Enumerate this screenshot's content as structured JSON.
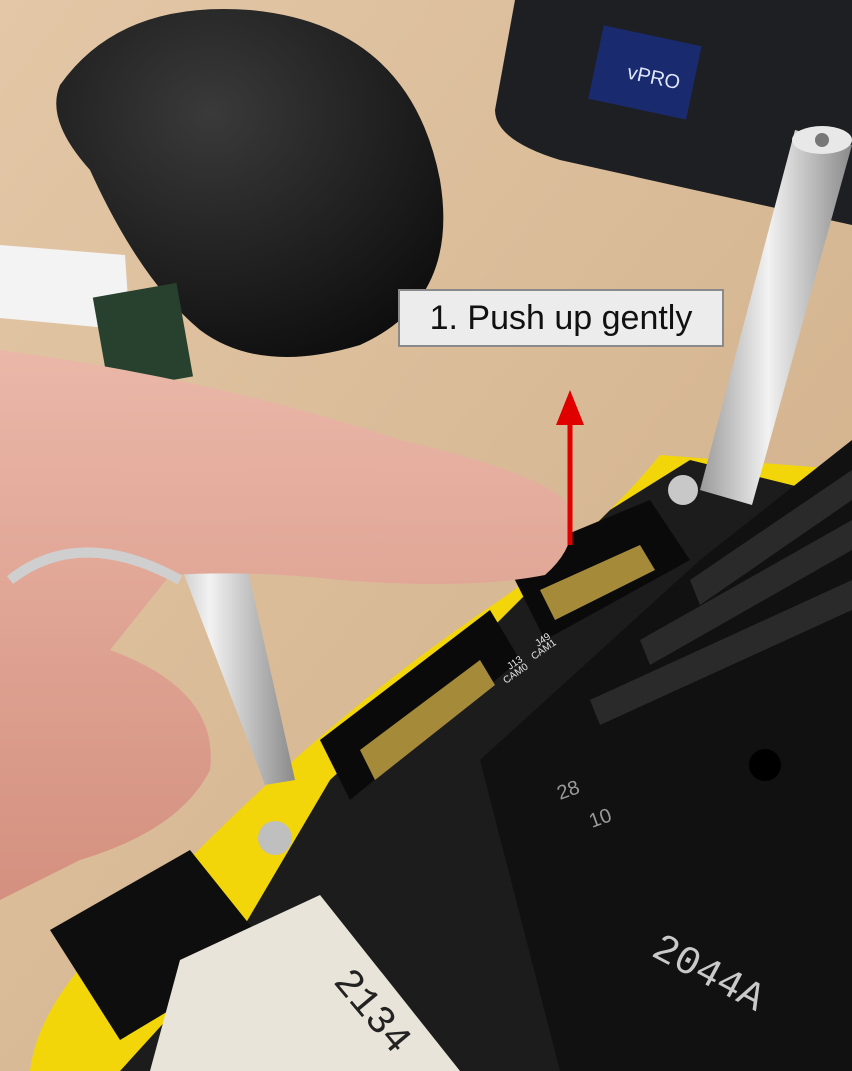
{
  "annotation": {
    "callout_text": "1. Push up gently",
    "arrow_color": "#e00000",
    "arrow_direction": "up"
  },
  "photo_text": {
    "laptop_sticker": "vPRO",
    "connector_labels": [
      "J13",
      "CAM0",
      "J49",
      "CAM1"
    ],
    "board_numbers": [
      "28",
      "10"
    ],
    "chip_marking": "2044A",
    "card_marking": "2134"
  },
  "colors": {
    "desk": "#d8b995",
    "carrier_plate": "#f2d60a",
    "board": "#1c1c1c",
    "mouse": "#141414",
    "finger": "#e2a99a"
  }
}
